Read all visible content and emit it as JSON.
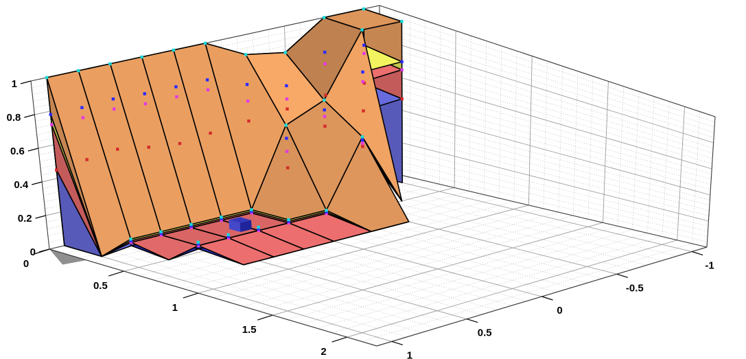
{
  "chart_data": {
    "type": "surface",
    "title": "",
    "legend": null,
    "axes": {
      "x": {
        "range": [
          0,
          2.2
        ],
        "ticks": [
          0,
          0.5,
          1,
          1.5,
          2
        ],
        "tick_labels": [
          "0",
          "0.5",
          "1",
          "1.5",
          "2"
        ],
        "minor_step": 0.1
      },
      "y": {
        "range": [
          -1.1,
          1.1
        ],
        "ticks": [
          1,
          0.5,
          0,
          -0.5,
          -1
        ],
        "tick_labels": [
          "1",
          "0.5",
          "0",
          "-0.5",
          "-1"
        ],
        "minor_step": 0.1
      },
      "z": {
        "range": [
          0,
          1
        ],
        "ticks": [
          0,
          0.2,
          0.4,
          0.6,
          0.8,
          1
        ],
        "tick_labels": [
          "0",
          "0.2",
          "0.4",
          "0.6",
          "0.8",
          "1"
        ],
        "minor_step": 0.04
      }
    },
    "grid": {
      "x_nodes": [
        0,
        0.25,
        0.5,
        0.8
      ],
      "y_nodes": [
        1,
        0.8,
        0.6,
        0.4,
        0.2,
        0,
        -0.25,
        -0.5,
        -0.75,
        -1
      ]
    },
    "layers": [
      {
        "name": "blue",
        "color": "#6b6ee3",
        "marker_color": "#d42a2a",
        "tops": [
          [
            0.45,
            0.0,
            null,
            null
          ],
          [
            0.47,
            0.02,
            0.0,
            null
          ],
          [
            0.49,
            0.02,
            0.02,
            0.0
          ],
          [
            0.46,
            0.02,
            0.02,
            0.0
          ],
          [
            0.44,
            0.02,
            0.02,
            0.0
          ],
          [
            0.46,
            0.02,
            0.02,
            0.0
          ],
          [
            0.48,
            0.26,
            0.02,
            0.0
          ],
          [
            0.5,
            0.46,
            0.4,
            0.0
          ],
          [
            0.53,
            0.5,
            0.0,
            null
          ],
          [
            0.55,
            0.52,
            null,
            null
          ]
        ]
      },
      {
        "name": "red",
        "color": "#ef6f6f",
        "marker_color": "#e23ae2",
        "tops": [
          [
            0.72,
            0.0,
            null,
            null
          ],
          [
            0.72,
            0.04,
            0.0,
            null
          ],
          [
            0.73,
            0.04,
            0.04,
            0.0
          ],
          [
            0.72,
            0.04,
            0.04,
            0.0
          ],
          [
            0.72,
            0.04,
            0.04,
            0.0
          ],
          [
            0.72,
            0.04,
            0.04,
            0.0
          ],
          [
            0.6,
            0.36,
            0.04,
            0.0
          ],
          [
            0.56,
            0.52,
            0.42,
            0.0
          ],
          [
            0.72,
            0.68,
            0.0,
            null
          ],
          [
            0.73,
            0.7,
            null,
            null
          ]
        ]
      },
      {
        "name": "yellow",
        "color": "#f2f25e",
        "marker_color": "#2b2bff",
        "tops": [
          [
            0.78,
            0.0,
            null,
            null
          ],
          [
            0.78,
            0.05,
            0.0,
            null
          ],
          [
            0.79,
            0.05,
            0.05,
            0.0
          ],
          [
            0.78,
            0.05,
            0.05,
            0.0
          ],
          [
            0.78,
            0.05,
            0.05,
            0.0
          ],
          [
            0.78,
            0.05,
            0.05,
            0.0
          ],
          [
            0.7,
            0.44,
            0.05,
            0.0
          ],
          [
            0.64,
            0.56,
            0.44,
            0.0
          ],
          [
            0.79,
            0.74,
            0.0,
            null
          ],
          [
            0.78,
            0.75,
            null,
            null
          ]
        ]
      },
      {
        "name": "orange",
        "color": "#f2a464",
        "marker_color": "#17d8d8",
        "tops": [
          [
            1.0,
            0.0,
            null,
            null
          ],
          [
            1.0,
            0.06,
            0.0,
            null
          ],
          [
            1.0,
            0.06,
            0.06,
            0.0
          ],
          [
            1.0,
            0.06,
            0.06,
            0.0
          ],
          [
            1.0,
            0.06,
            0.06,
            0.0
          ],
          [
            1.0,
            0.06,
            0.06,
            0.0
          ],
          [
            0.88,
            0.52,
            0.06,
            0.0
          ],
          [
            0.84,
            0.62,
            0.46,
            0.0
          ],
          [
            1.0,
            1.0,
            0.0,
            null
          ],
          [
            1.0,
            1.0,
            null,
            null
          ]
        ]
      }
    ],
    "special_point": {
      "x": 0.3,
      "y": 0.2,
      "size": 0.075,
      "height": 0.055,
      "top_color": "#3338c0",
      "left_color": "#4348c9",
      "right_color": "#1f249a"
    },
    "colors": {
      "mesh": "#000000",
      "grid_major": "#9c9c9c",
      "grid_minor": "#b8b8b8",
      "box_edge": "#3c3c3c",
      "navy_floor": "#2a2eb3",
      "origin_shadow": "#8f8f8f",
      "background": "#ffffff"
    }
  }
}
